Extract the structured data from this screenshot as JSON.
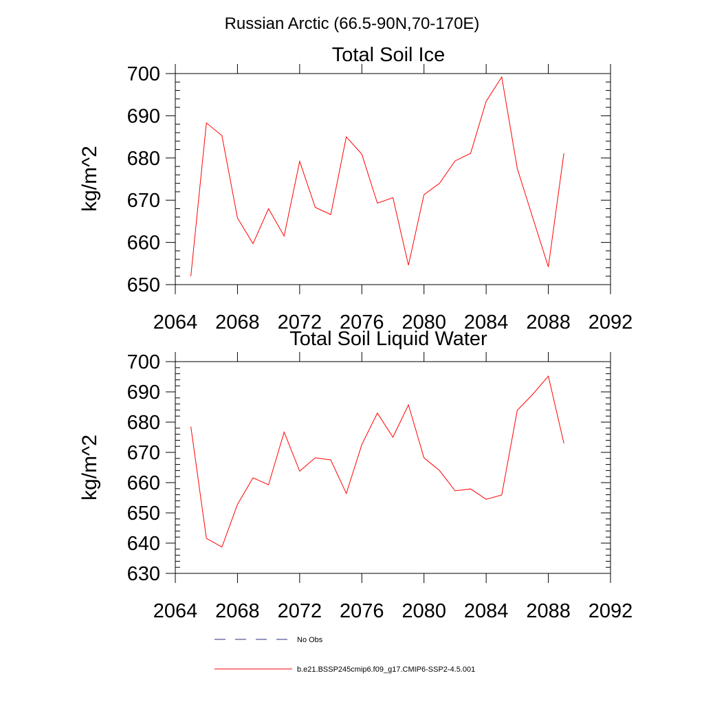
{
  "figure": {
    "title": "Russian Arctic (66.5-90N,70-170E)"
  },
  "chart_data": [
    {
      "type": "line",
      "title": "Total Soil Ice",
      "xlabel": "",
      "ylabel": "kg/m^2",
      "xlim": [
        2064,
        2092
      ],
      "ylim": [
        650,
        700
      ],
      "xticks": [
        2064,
        2068,
        2072,
        2076,
        2080,
        2084,
        2088,
        2092
      ],
      "yticks": [
        650,
        660,
        670,
        680,
        690,
        700
      ],
      "grid": false,
      "series": [
        {
          "name": "b.e21.BSSP245cmip6.f09_g17.CMIP6-SSP2-4.5.001",
          "color": "#ff0000",
          "x": [
            2065,
            2066,
            2067,
            2068,
            2069,
            2070,
            2071,
            2072,
            2073,
            2074,
            2075,
            2076,
            2077,
            2078,
            2079,
            2080,
            2081,
            2082,
            2083,
            2084,
            2085,
            2086,
            2087,
            2088,
            2089
          ],
          "values": [
            652.0,
            688.3,
            685.3,
            665.8,
            659.7,
            668.0,
            661.5,
            679.2,
            668.3,
            666.6,
            685.0,
            680.9,
            669.3,
            670.6,
            654.6,
            671.3,
            674.0,
            679.3,
            681.1,
            693.4,
            699.2,
            677.5,
            665.8,
            654.2,
            681.1
          ]
        }
      ]
    },
    {
      "type": "line",
      "title": "Total Soil Liquid Water",
      "xlabel": "",
      "ylabel": "kg/m^2",
      "xlim": [
        2064,
        2092
      ],
      "ylim": [
        630,
        700
      ],
      "xticks": [
        2064,
        2068,
        2072,
        2076,
        2080,
        2084,
        2088,
        2092
      ],
      "yticks": [
        630,
        640,
        650,
        660,
        670,
        680,
        690,
        700
      ],
      "grid": false,
      "series": [
        {
          "name": "b.e21.BSSP245cmip6.f09_g17.CMIP6-SSP2-4.5.001",
          "color": "#ff0000",
          "x": [
            2065,
            2066,
            2067,
            2068,
            2069,
            2070,
            2071,
            2072,
            2073,
            2074,
            2075,
            2076,
            2077,
            2078,
            2079,
            2080,
            2081,
            2082,
            2083,
            2084,
            2085,
            2086,
            2087,
            2088,
            2089
          ],
          "values": [
            678.5,
            641.6,
            638.7,
            652.8,
            661.6,
            659.3,
            676.7,
            663.8,
            668.2,
            667.5,
            656.4,
            672.6,
            683.0,
            675.0,
            685.7,
            668.2,
            664.0,
            657.3,
            657.9,
            654.5,
            655.9,
            683.9,
            689.2,
            695.2,
            673.0
          ]
        }
      ]
    }
  ],
  "legend": {
    "placement": "bottom",
    "entries": [
      {
        "label": "No Obs",
        "color": "#2b2b80",
        "dash": "dashed"
      },
      {
        "label": "b.e21.BSSP245cmip6.f09_g17.CMIP6-SSP2-4.5.001",
        "color": "#ff0000",
        "dash": "solid"
      }
    ]
  }
}
